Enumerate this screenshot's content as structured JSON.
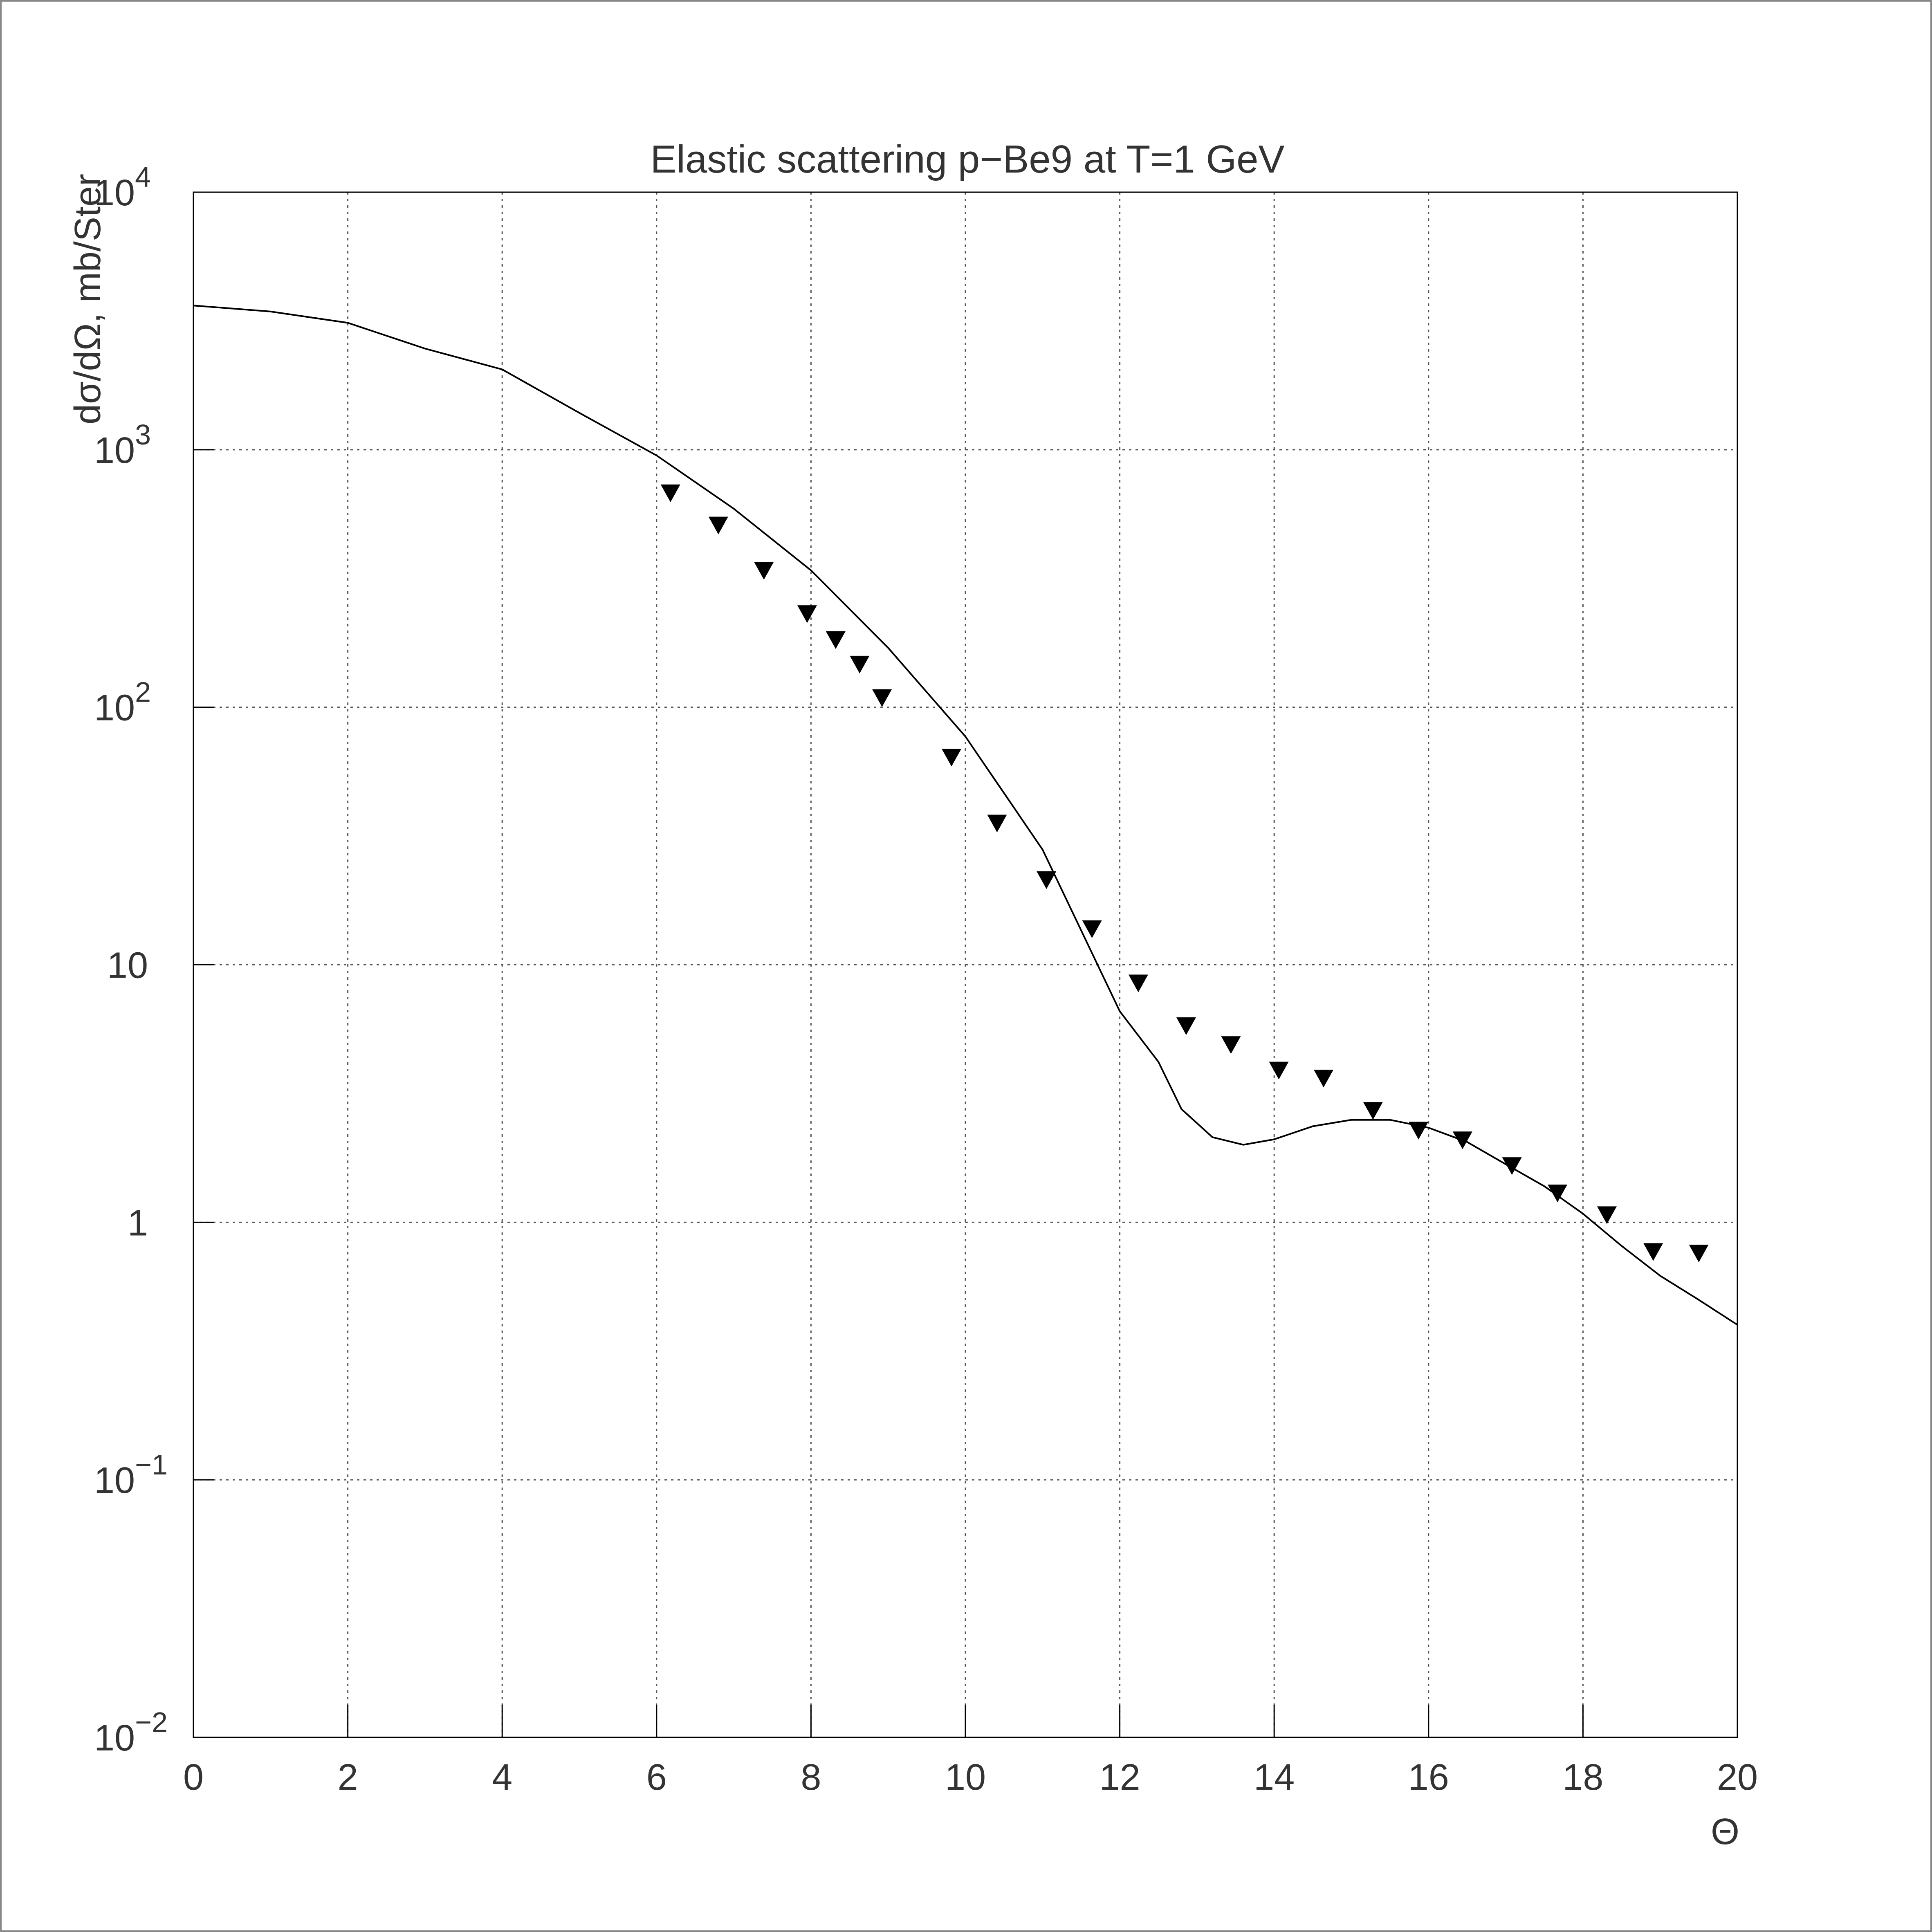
{
  "chart_data": {
    "type": "line",
    "title": "Elastic scattering p−Be9 at T=1 GeV",
    "xlabel": "Θ",
    "ylabel": "dσ/dΩ, mb/Ster",
    "xlim": [
      0,
      20
    ],
    "xticks": [
      0,
      2,
      4,
      6,
      8,
      10,
      12,
      14,
      16,
      18,
      20
    ],
    "ylim": [
      0.01,
      10000
    ],
    "ylog": true,
    "yticks": [
      {
        "value": 0.01,
        "label": "10−2"
      },
      {
        "value": 0.1,
        "label": "10−1"
      },
      1,
      10,
      {
        "value": 100,
        "label": "102"
      },
      {
        "value": 1000,
        "label": "103"
      },
      {
        "value": 10000,
        "label": "104"
      }
    ],
    "grid": true,
    "series": [
      {
        "type": "line",
        "color": "#000000",
        "x": [
          0,
          1,
          2,
          3,
          4,
          5,
          6,
          7,
          8,
          9,
          10,
          11,
          12,
          12.5,
          12.8,
          13.2,
          13.6,
          14,
          14.5,
          15,
          15.5,
          16,
          16.5,
          17,
          17.5,
          18,
          18.5,
          19,
          19.5,
          20
        ],
        "values": [
          3630,
          3440,
          3110,
          2470,
          2050,
          1390,
          950,
          590,
          340,
          170,
          77,
          28,
          6.6,
          4.2,
          2.75,
          2.14,
          2.0,
          2.1,
          2.36,
          2.5,
          2.5,
          2.33,
          2.05,
          1.68,
          1.38,
          1.08,
          0.81,
          0.62,
          0.5,
          0.4
        ]
      },
      {
        "type": "scatter",
        "marker": "triangle-down",
        "color": "#000000",
        "x": [
          6.18,
          6.8,
          7.39,
          7.95,
          8.32,
          8.63,
          8.92,
          9.82,
          10.41,
          11.05,
          11.64,
          12.24,
          12.86,
          13.44,
          14.06,
          14.64,
          15.28,
          15.87,
          16.44,
          17.08,
          17.67,
          18.31,
          18.91,
          19.5
        ],
        "values": [
          680,
          510,
          340,
          231,
          183,
          147,
          109,
          64,
          35.5,
          21.4,
          13.8,
          8.5,
          5.8,
          4.9,
          3.9,
          3.63,
          2.72,
          2.28,
          2.09,
          1.66,
          1.3,
          1.07,
          0.77,
          0.76
        ]
      }
    ]
  }
}
